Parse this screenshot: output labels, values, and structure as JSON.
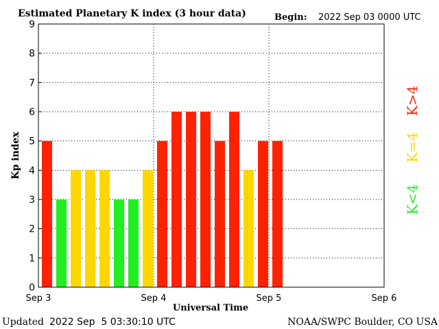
{
  "header": {
    "title": "Estimated Planetary K index (3 hour data)",
    "begin_label": "Begin:",
    "begin_value": "2022 Sep 03 0000 UTC"
  },
  "footer": {
    "updated_label": "Updated",
    "updated_value": "2022 Sep  5 03:30:10 UTC",
    "source": "NOAA/SWPC Boulder, CO USA"
  },
  "legend": {
    "low": "K<4",
    "mid": "K=4",
    "high": "K>4"
  },
  "colors": {
    "low": "#22ee22",
    "mid": "#ffd700",
    "high": "#ff2200",
    "grid": "#000000"
  },
  "chart_data": {
    "type": "bar",
    "title": "Estimated Planetary K index (3 hour data)",
    "xlabel": "Universal Time",
    "ylabel": "Kp index",
    "ylim": [
      0,
      9
    ],
    "y_ticks": [
      "0",
      "1",
      "2",
      "3",
      "4",
      "5",
      "6",
      "7",
      "8",
      "9"
    ],
    "x_ticks": [
      "Sep 3",
      "Sep 4",
      "Sep 5",
      "Sep 6"
    ],
    "bins_per_day": 8,
    "grid": true,
    "values": [
      5,
      3,
      4,
      4,
      4,
      3,
      3,
      4,
      5,
      6,
      6,
      6,
      5,
      6,
      4,
      5,
      5
    ]
  }
}
